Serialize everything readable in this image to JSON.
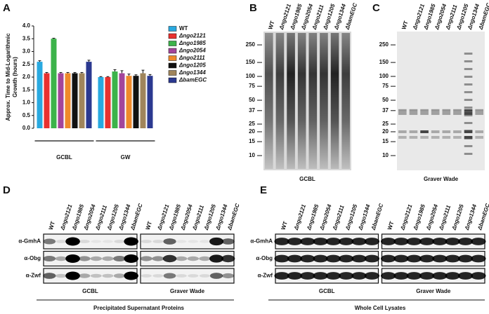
{
  "chart_data": {
    "type": "bar",
    "ylabel": [
      "Approx. Time  to Mid-Logarithmic",
      "Growth (hours)"
    ],
    "categories": [
      "GCBL",
      "GW"
    ],
    "series": [
      {
        "name": "WT",
        "color": "#29a9e0",
        "values": [
          2.6,
          2.0
        ],
        "errors": [
          0.04,
          0.02
        ]
      },
      {
        "name": "Δngo2121",
        "color": "#e8312f",
        "values": [
          2.15,
          2.0
        ],
        "errors": [
          0.03,
          0.02
        ]
      },
      {
        "name": "Δngo1985",
        "color": "#3cb34a",
        "values": [
          3.5,
          2.22
        ],
        "errors": [
          0.02,
          0.07
        ]
      },
      {
        "name": "Δngo2054",
        "color": "#a3459b",
        "values": [
          2.15,
          2.15
        ],
        "errors": [
          0.03,
          0.1
        ]
      },
      {
        "name": "Δngo2111",
        "color": "#ef8a2b",
        "values": [
          2.15,
          2.05
        ],
        "errors": [
          0.03,
          0.07
        ]
      },
      {
        "name": "Δngo1205",
        "color": "#111111",
        "values": [
          2.15,
          2.05
        ],
        "errors": [
          0.03,
          0.04
        ]
      },
      {
        "name": "Δngo1344",
        "color": "#a0855b",
        "values": [
          2.15,
          2.15
        ],
        "errors": [
          0.03,
          0.12
        ]
      },
      {
        "name": "ΔbamEGC",
        "color": "#2b3990",
        "values": [
          2.6,
          2.05
        ],
        "errors": [
          0.06,
          0.05
        ]
      }
    ],
    "ylim": [
      0,
      4
    ],
    "yticks": [
      {
        "value": 0,
        "label": "0.0"
      },
      0.5,
      {
        "value": 1,
        "label": "1.0"
      },
      1.5,
      {
        "value": 2,
        "label": "2.0"
      },
      2.5,
      {
        "value": 3,
        "label": "3.0"
      },
      3.5,
      {
        "value": 4,
        "label": "4.0"
      }
    ]
  },
  "panel_labels": [
    "A",
    "B",
    "C",
    "D",
    "E"
  ],
  "lanes": [
    "WT",
    "Δngo2121",
    "Δngo1985",
    "Δngo2054",
    "Δngo2111",
    "Δngo1205",
    "Δngo1344",
    "ΔbamEGC"
  ],
  "gels": {
    "markers": [
      250,
      150,
      100,
      75,
      50,
      37,
      25,
      20,
      15,
      10
    ],
    "B": "GCBL",
    "C": "Graver Wade"
  },
  "blots": {
    "rows": [
      "α-GmhA",
      "α-Obg",
      "α-Zwf"
    ],
    "media": [
      "GCBL",
      "Graver Wade"
    ],
    "D": "Precipitated Supernatant Proteins",
    "E": "Whole Cell Lysates"
  }
}
